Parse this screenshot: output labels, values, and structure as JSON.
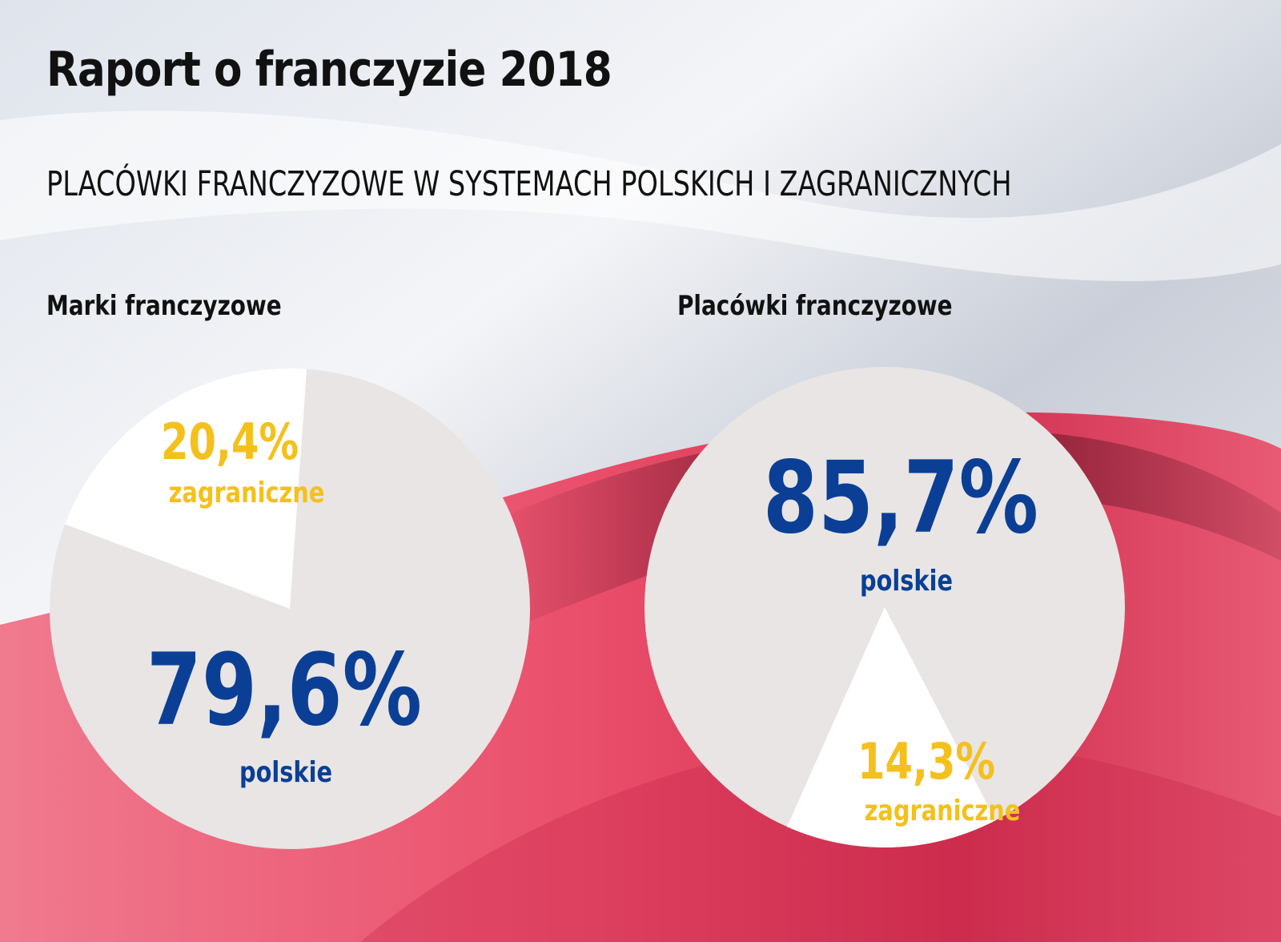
{
  "header": {
    "title": "Raport o franczyzie 2018",
    "subtitle": "PLACÓWKI FRANCZYZOWE W SYSTEMACH POLSKICH I ZAGRANICZNYCH"
  },
  "colors": {
    "slice_major": "#e8e5e4",
    "slice_minor": "#ffffff",
    "label_major": "#0b3f95",
    "label_minor": "#f4c01c"
  },
  "chart_data": [
    {
      "type": "pie",
      "title": "Marki franczyzowe",
      "slices": [
        {
          "label": "polskie",
          "value": 79.6,
          "value_label": "79,6%"
        },
        {
          "label": "zagraniczne",
          "value": 20.4,
          "value_label": "20,4%"
        }
      ]
    },
    {
      "type": "pie",
      "title": "Placówki franczyzowe",
      "slices": [
        {
          "label": "polskie",
          "value": 85.7,
          "value_label": "85,7%"
        },
        {
          "label": "zagraniczne",
          "value": 14.3,
          "value_label": "14,3%"
        }
      ]
    }
  ]
}
